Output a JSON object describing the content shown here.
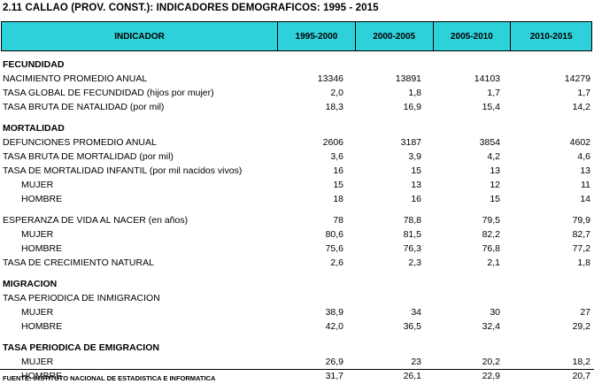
{
  "title": "2.11 CALLAO (PROV. CONST.): INDICADORES DEMOGRAFICOS: 1995 - 2015",
  "header": [
    "INDICADOR",
    "1995-2000",
    "2000-2005",
    "2005-2010",
    "2010-2015"
  ],
  "rows": [
    {
      "kind": "section",
      "label": "FECUNDIDAD"
    },
    {
      "kind": "data",
      "label": "NACIMIENTO PROMEDIO ANUAL",
      "values": [
        "13346",
        "13891",
        "14103",
        "14279"
      ]
    },
    {
      "kind": "data",
      "label": "TASA GLOBAL DE FECUNDIDAD (hijos por mujer)",
      "values": [
        "2,0",
        "1,8",
        "1,7",
        "1,7"
      ]
    },
    {
      "kind": "data",
      "label": "TASA BRUTA DE NATALIDAD (por mil)",
      "values": [
        "18,3",
        "16,9",
        "15,4",
        "14,2"
      ]
    },
    {
      "kind": "spacer"
    },
    {
      "kind": "section",
      "label": "MORTALIDAD"
    },
    {
      "kind": "data",
      "label": "DEFUNCIONES PROMEDIO ANUAL",
      "values": [
        "2606",
        "3187",
        "3854",
        "4602"
      ]
    },
    {
      "kind": "data",
      "label": "TASA BRUTA DE MORTALIDAD (por mil)",
      "values": [
        "3,6",
        "3,9",
        "4,2",
        "4,6"
      ]
    },
    {
      "kind": "data",
      "label": "TASA DE MORTALIDAD INFANTIL (por mil nacidos vivos)",
      "values": [
        "16",
        "15",
        "13",
        "13"
      ]
    },
    {
      "kind": "data",
      "indent": true,
      "label": "MUJER",
      "values": [
        "15",
        "13",
        "12",
        "11"
      ]
    },
    {
      "kind": "data",
      "indent": true,
      "label": "HOMBRE",
      "values": [
        "18",
        "16",
        "15",
        "14"
      ]
    },
    {
      "kind": "spacer"
    },
    {
      "kind": "data",
      "label": "ESPERANZA DE VIDA AL NACER (en años)",
      "values": [
        "78",
        "78,8",
        "79,5",
        "79,9"
      ]
    },
    {
      "kind": "data",
      "indent": true,
      "label": "MUJER",
      "values": [
        "80,6",
        "81,5",
        "82,2",
        "82,7"
      ]
    },
    {
      "kind": "data",
      "indent": true,
      "label": "HOMBRE",
      "values": [
        "75,6",
        "76,3",
        "76,8",
        "77,2"
      ]
    },
    {
      "kind": "data",
      "label": "TASA DE CRECIMIENTO NATURAL",
      "values": [
        "2,6",
        "2,3",
        "2,1",
        "1,8"
      ]
    },
    {
      "kind": "spacer"
    },
    {
      "kind": "section",
      "label": "MIGRACION"
    },
    {
      "kind": "data",
      "label": "TASA PERIODICA DE INMIGRACION",
      "values": [
        "",
        "",
        "",
        ""
      ]
    },
    {
      "kind": "data",
      "indent": true,
      "label": "MUJER",
      "values": [
        "38,9",
        "34",
        "30",
        "27"
      ]
    },
    {
      "kind": "data",
      "indent": true,
      "label": "HOMBRE",
      "values": [
        "42,0",
        "36,5",
        "32,4",
        "29,2"
      ]
    },
    {
      "kind": "spacer"
    },
    {
      "kind": "section",
      "label": "TASA PERIODICA DE EMIGRACION"
    },
    {
      "kind": "data",
      "indent": true,
      "label": "MUJER",
      "values": [
        "26,9",
        "23",
        "20,2",
        "18,2"
      ]
    },
    {
      "kind": "data",
      "indent": true,
      "label": "HOMBRE",
      "values": [
        "31,7",
        "26,1",
        "22,9",
        "20,7"
      ]
    }
  ],
  "source": "FUENTE: INSTITUTO NACIONAL DE ESTADISTICA E INFORMATICA"
}
